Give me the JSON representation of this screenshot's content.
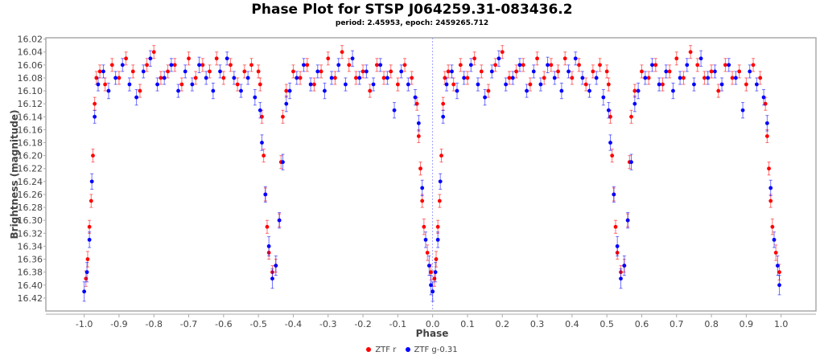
{
  "chart_data": {
    "type": "scatter",
    "title": "Phase Plot for STSP J064259.31-083436.2",
    "subtitle": "period: 2.45953, epoch: 2459265.712",
    "xlabel": "Phase",
    "ylabel": "Brightness (magnitude)",
    "xlim": [
      -1.11,
      1.1
    ],
    "ylim": [
      16.018,
      16.44
    ],
    "y_inverted": true,
    "xticks": [
      "-1.0",
      "-0.9",
      "-0.8",
      "-0.7",
      "-0.6",
      "-0.5",
      "-0.4",
      "-0.3",
      "-0.2",
      "-0.1",
      "0.0",
      "0.1",
      "0.2",
      "0.3",
      "0.4",
      "0.5",
      "0.6",
      "0.7",
      "0.8",
      "0.9",
      "1.0"
    ],
    "yticks": [
      "16.02",
      "16.04",
      "16.06",
      "16.08",
      "16.10",
      "16.12",
      "16.14",
      "16.16",
      "16.18",
      "16.20",
      "16.22",
      "16.24",
      "16.26",
      "16.28",
      "16.30",
      "16.32",
      "16.34",
      "16.36",
      "16.38",
      "16.40",
      "16.42"
    ],
    "zero_marker_line": 0.0,
    "legend_position": "bottom",
    "phase_repeat": "points in [0,1) also plotted at phase-1",
    "series": [
      {
        "name": "ZTF r",
        "color": "#ff0000",
        "points": [
          [
            0.005,
            16.39,
            0.012
          ],
          [
            0.01,
            16.36,
            0.012
          ],
          [
            0.015,
            16.31,
            0.01
          ],
          [
            0.02,
            16.27,
            0.01
          ],
          [
            0.025,
            16.2,
            0.01
          ],
          [
            0.03,
            16.12,
            0.01
          ],
          [
            0.035,
            16.08,
            0.01
          ],
          [
            0.045,
            16.07,
            0.01
          ],
          [
            0.06,
            16.09,
            0.01
          ],
          [
            0.08,
            16.06,
            0.01
          ],
          [
            0.1,
            16.08,
            0.01
          ],
          [
            0.12,
            16.05,
            0.01
          ],
          [
            0.14,
            16.07,
            0.01
          ],
          [
            0.16,
            16.1,
            0.01
          ],
          [
            0.18,
            16.06,
            0.01
          ],
          [
            0.2,
            16.04,
            0.01
          ],
          [
            0.22,
            16.08,
            0.01
          ],
          [
            0.24,
            16.07,
            0.01
          ],
          [
            0.26,
            16.06,
            0.01
          ],
          [
            0.28,
            16.09,
            0.01
          ],
          [
            0.3,
            16.05,
            0.01
          ],
          [
            0.32,
            16.08,
            0.01
          ],
          [
            0.34,
            16.06,
            0.01
          ],
          [
            0.36,
            16.07,
            0.01
          ],
          [
            0.38,
            16.05,
            0.01
          ],
          [
            0.4,
            16.08,
            0.01
          ],
          [
            0.42,
            16.06,
            0.01
          ],
          [
            0.44,
            16.09,
            0.01
          ],
          [
            0.46,
            16.07,
            0.01
          ],
          [
            0.48,
            16.06,
            0.01
          ],
          [
            0.5,
            16.07,
            0.01
          ],
          [
            0.505,
            16.09,
            0.01
          ],
          [
            0.51,
            16.14,
            0.01
          ],
          [
            0.515,
            16.2,
            0.01
          ],
          [
            0.52,
            16.26,
            0.01
          ],
          [
            0.525,
            16.31,
            0.01
          ],
          [
            0.53,
            16.35,
            0.01
          ],
          [
            0.54,
            16.38,
            0.01
          ],
          [
            0.55,
            16.37,
            0.01
          ],
          [
            0.56,
            16.3,
            0.01
          ],
          [
            0.565,
            16.21,
            0.01
          ],
          [
            0.57,
            16.14,
            0.01
          ],
          [
            0.58,
            16.1,
            0.01
          ],
          [
            0.6,
            16.07,
            0.01
          ],
          [
            0.62,
            16.08,
            0.01
          ],
          [
            0.64,
            16.06,
            0.01
          ],
          [
            0.66,
            16.09,
            0.01
          ],
          [
            0.68,
            16.07,
            0.01
          ],
          [
            0.7,
            16.05,
            0.01
          ],
          [
            0.72,
            16.08,
            0.01
          ],
          [
            0.74,
            16.04,
            0.01
          ],
          [
            0.76,
            16.06,
            0.01
          ],
          [
            0.78,
            16.08,
            0.01
          ],
          [
            0.8,
            16.07,
            0.01
          ],
          [
            0.82,
            16.1,
            0.01
          ],
          [
            0.84,
            16.06,
            0.01
          ],
          [
            0.86,
            16.08,
            0.01
          ],
          [
            0.88,
            16.07,
            0.01
          ],
          [
            0.9,
            16.09,
            0.01
          ],
          [
            0.92,
            16.06,
            0.01
          ],
          [
            0.94,
            16.08,
            0.01
          ],
          [
            0.955,
            16.12,
            0.01
          ],
          [
            0.96,
            16.17,
            0.01
          ],
          [
            0.965,
            16.22,
            0.01
          ],
          [
            0.97,
            16.27,
            0.01
          ],
          [
            0.975,
            16.31,
            0.012
          ],
          [
            0.985,
            16.35,
            0.012
          ],
          [
            0.995,
            16.38,
            0.012
          ]
        ]
      },
      {
        "name": "ZTF g-0.31",
        "color": "#0000ff",
        "points": [
          [
            0.0,
            16.41,
            0.015
          ],
          [
            0.008,
            16.38,
            0.015
          ],
          [
            0.015,
            16.33,
            0.012
          ],
          [
            0.022,
            16.24,
            0.012
          ],
          [
            0.03,
            16.14,
            0.01
          ],
          [
            0.04,
            16.09,
            0.01
          ],
          [
            0.055,
            16.07,
            0.01
          ],
          [
            0.07,
            16.1,
            0.012
          ],
          [
            0.09,
            16.08,
            0.01
          ],
          [
            0.11,
            16.06,
            0.01
          ],
          [
            0.13,
            16.09,
            0.01
          ],
          [
            0.15,
            16.11,
            0.012
          ],
          [
            0.17,
            16.07,
            0.01
          ],
          [
            0.19,
            16.05,
            0.012
          ],
          [
            0.21,
            16.09,
            0.01
          ],
          [
            0.23,
            16.08,
            0.01
          ],
          [
            0.25,
            16.06,
            0.01
          ],
          [
            0.27,
            16.1,
            0.01
          ],
          [
            0.29,
            16.07,
            0.01
          ],
          [
            0.31,
            16.09,
            0.01
          ],
          [
            0.33,
            16.06,
            0.012
          ],
          [
            0.35,
            16.08,
            0.01
          ],
          [
            0.37,
            16.1,
            0.012
          ],
          [
            0.39,
            16.07,
            0.01
          ],
          [
            0.41,
            16.05,
            0.01
          ],
          [
            0.43,
            16.08,
            0.01
          ],
          [
            0.45,
            16.1,
            0.01
          ],
          [
            0.47,
            16.08,
            0.01
          ],
          [
            0.49,
            16.11,
            0.012
          ],
          [
            0.505,
            16.13,
            0.012
          ],
          [
            0.51,
            16.18,
            0.012
          ],
          [
            0.52,
            16.26,
            0.012
          ],
          [
            0.53,
            16.34,
            0.015
          ],
          [
            0.54,
            16.39,
            0.015
          ],
          [
            0.55,
            16.37,
            0.015
          ],
          [
            0.56,
            16.3,
            0.012
          ],
          [
            0.57,
            16.21,
            0.012
          ],
          [
            0.58,
            16.12,
            0.012
          ],
          [
            0.59,
            16.1,
            0.012
          ],
          [
            0.61,
            16.08,
            0.01
          ],
          [
            0.63,
            16.06,
            0.01
          ],
          [
            0.65,
            16.09,
            0.01
          ],
          [
            0.67,
            16.07,
            0.01
          ],
          [
            0.69,
            16.1,
            0.012
          ],
          [
            0.71,
            16.08,
            0.01
          ],
          [
            0.73,
            16.06,
            0.01
          ],
          [
            0.75,
            16.09,
            0.01
          ],
          [
            0.77,
            16.05,
            0.012
          ],
          [
            0.79,
            16.08,
            0.01
          ],
          [
            0.81,
            16.07,
            0.01
          ],
          [
            0.83,
            16.09,
            0.01
          ],
          [
            0.85,
            16.06,
            0.01
          ],
          [
            0.87,
            16.08,
            0.01
          ],
          [
            0.89,
            16.13,
            0.012
          ],
          [
            0.91,
            16.07,
            0.01
          ],
          [
            0.93,
            16.09,
            0.01
          ],
          [
            0.95,
            16.11,
            0.012
          ],
          [
            0.96,
            16.15,
            0.012
          ],
          [
            0.97,
            16.25,
            0.012
          ],
          [
            0.98,
            16.33,
            0.012
          ],
          [
            0.99,
            16.37,
            0.015
          ],
          [
            0.995,
            16.4,
            0.015
          ]
        ]
      }
    ]
  }
}
